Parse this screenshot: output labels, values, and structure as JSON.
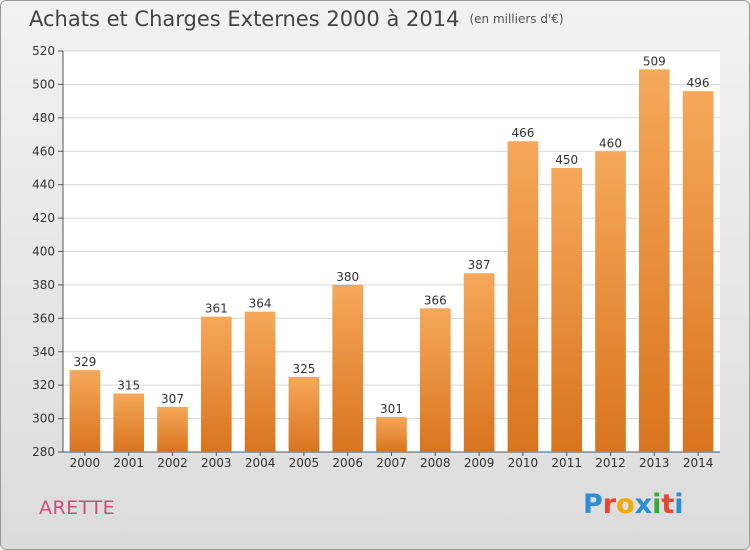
{
  "title": "Achats et Charges Externes 2000 à 2014",
  "subtitle": "(en milliers d'€)",
  "commune": "ARETTE",
  "brand": {
    "letters": [
      "P",
      "r",
      "o",
      "x",
      "i",
      "t",
      "i"
    ],
    "colors": [
      "#2a8fd6",
      "#e8462f",
      "#f2a900",
      "#2a8fd6",
      "#39a83a",
      "#e8462f",
      "#2a8fd6"
    ]
  },
  "colors": {
    "bar_top": "#f5a85a",
    "bar_bottom": "#d9741e",
    "commune": "#d44a78"
  },
  "chart_data": {
    "type": "bar",
    "title": "Achats et Charges Externes 2000 à 2014",
    "subtitle": "(en milliers d'€)",
    "categories": [
      "2000",
      "2001",
      "2002",
      "2003",
      "2004",
      "2005",
      "2006",
      "2007",
      "2008",
      "2009",
      "2010",
      "2011",
      "2012",
      "2013",
      "2014"
    ],
    "values": [
      329,
      315,
      307,
      361,
      364,
      325,
      380,
      301,
      366,
      387,
      466,
      450,
      460,
      509,
      496
    ],
    "ylim": [
      280,
      520
    ],
    "yticks": [
      280,
      300,
      320,
      340,
      360,
      380,
      400,
      420,
      440,
      460,
      480,
      500,
      520
    ],
    "grid": true,
    "xlabel": "",
    "ylabel": ""
  }
}
